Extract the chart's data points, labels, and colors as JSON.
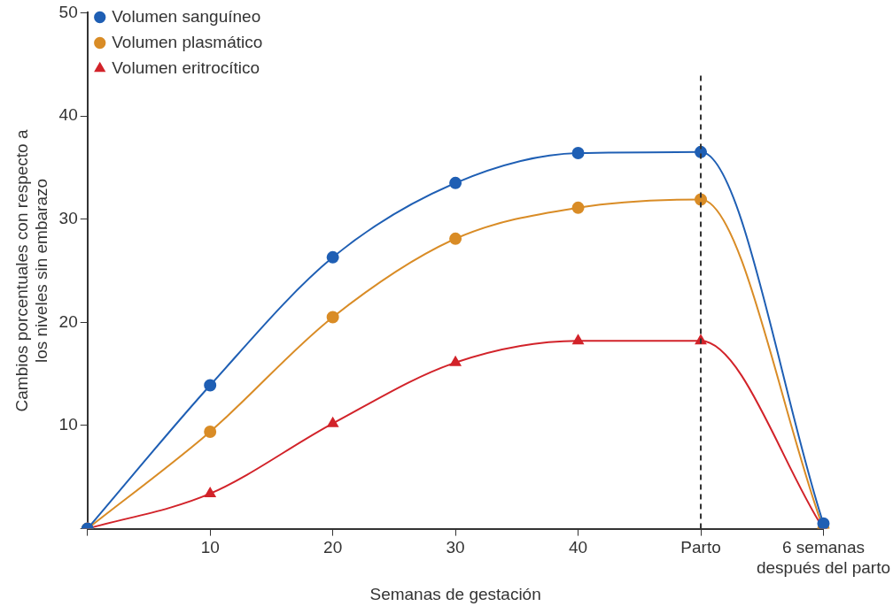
{
  "chart_data": {
    "type": "line",
    "xlabel": "Semanas de gestación",
    "ylabel": "Cambios porcentuales con respecto a\nlos niveles sin embarazo",
    "categories": [
      null,
      "10",
      "20",
      "30",
      "40",
      "Parto",
      "6 semanas\ndespués del parto"
    ],
    "ylim": [
      0,
      50
    ],
    "yticks": [
      {
        "value": 0,
        "label": null
      },
      10,
      20,
      30,
      40,
      50
    ],
    "grid": false,
    "legend": "top left",
    "series": [
      {
        "name": "Volumen sanguíneo",
        "color": "#1f5fb4",
        "marker": "circle",
        "values": [
          0,
          13.9,
          26.3,
          33.5,
          36.4,
          36.5,
          0.5
        ]
      },
      {
        "name": "Volumen plasmático",
        "color": "#d98c26",
        "marker": "circle",
        "values": [
          0,
          9.4,
          20.5,
          28.1,
          31.1,
          31.9,
          0
        ]
      },
      {
        "name": "Volumen eritrocítico",
        "color": "#d2232a",
        "marker": "triangle",
        "values": [
          0,
          3.4,
          10.2,
          16.1,
          18.2,
          18.2,
          0
        ]
      }
    ],
    "ref_lines": [
      {
        "axis": "x",
        "value": "Parto",
        "color": "#333333",
        "line_style": "dashed"
      }
    ]
  }
}
